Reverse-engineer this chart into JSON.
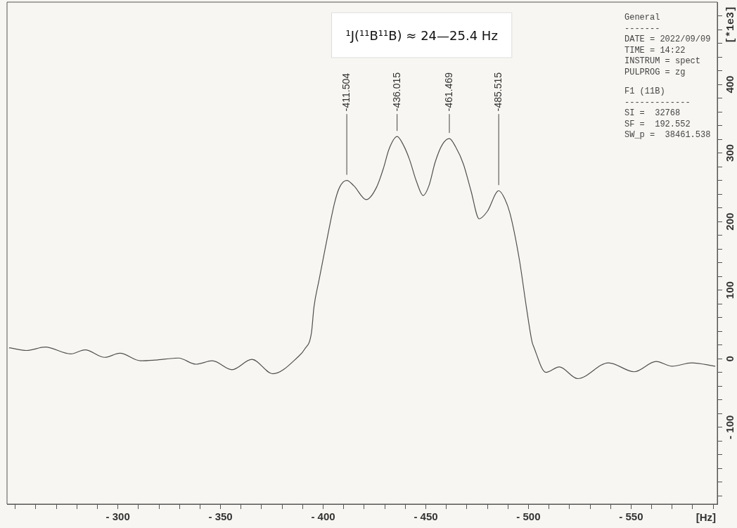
{
  "chart_data": {
    "type": "line",
    "title": "¹J(¹¹B¹¹B) ≈ 24—25.4 Hz",
    "xlabel": "[Hz]",
    "ylabel": "[*1e3]",
    "x": [
      -247,
      -255.5,
      -264.6,
      -277,
      -284,
      -293.6,
      -301,
      -311,
      -318,
      -329.5,
      -338,
      -346,
      -355.6,
      -365.3,
      -375.5,
      -387.5,
      -391,
      -394.3,
      -395.5,
      -398,
      -401,
      -405.7,
      -408,
      -411.504,
      -415,
      -421,
      -426,
      -429.6,
      -432,
      -436.015,
      -439,
      -442,
      -445.5,
      -448.7,
      -451.5,
      -454.6,
      -458,
      -461.469,
      -464.5,
      -468.3,
      -472,
      -476,
      -480,
      -485.515,
      -488.5,
      -491,
      -495.6,
      -499,
      -501.8,
      -502.5,
      -508.5,
      -515,
      -524,
      -539,
      -551.5,
      -562.2,
      -570,
      -579.5,
      -591
    ],
    "values": [
      16,
      12,
      17,
      7,
      13,
      2,
      8,
      -3,
      -2,
      1,
      -8,
      -3,
      -16,
      -1,
      -22,
      2,
      14,
      38,
      75,
      115,
      161,
      229,
      250,
      260,
      252,
      232,
      250,
      280,
      305,
      324,
      312,
      291,
      258,
      238,
      252,
      287,
      312,
      321,
      309,
      284,
      245,
      204,
      215,
      245,
      233,
      212,
      144,
      75,
      24,
      18,
      -20,
      -12,
      -29,
      -6,
      -19,
      -4,
      -11,
      -6,
      -11
    ],
    "color": "#505050",
    "marker": "none",
    "line_style": "solid",
    "legend": false,
    "grid": false,
    "xlim": [
      -246,
      -592
    ],
    "xticks": [
      {
        "value": -250,
        "label": null
      },
      {
        "value": -260,
        "label": null
      },
      {
        "value": -270,
        "label": null
      },
      {
        "value": -280,
        "label": null
      },
      {
        "value": -290,
        "label": null
      },
      {
        "value": -300,
        "label": "- 300"
      },
      {
        "value": -310,
        "label": null
      },
      {
        "value": -320,
        "label": null
      },
      {
        "value": -330,
        "label": null
      },
      {
        "value": -340,
        "label": null
      },
      {
        "value": -350,
        "label": "- 350"
      },
      {
        "value": -360,
        "label": null
      },
      {
        "value": -370,
        "label": null
      },
      {
        "value": -380,
        "label": null
      },
      {
        "value": -390,
        "label": null
      },
      {
        "value": -400,
        "label": "- 400"
      },
      {
        "value": -410,
        "label": null
      },
      {
        "value": -420,
        "label": null
      },
      {
        "value": -430,
        "label": null
      },
      {
        "value": -440,
        "label": null
      },
      {
        "value": -450,
        "label": "- 450"
      },
      {
        "value": -460,
        "label": null
      },
      {
        "value": -470,
        "label": null
      },
      {
        "value": -480,
        "label": null
      },
      {
        "value": -490,
        "label": null
      },
      {
        "value": -500,
        "label": "- 500"
      },
      {
        "value": -510,
        "label": null
      },
      {
        "value": -520,
        "label": null
      },
      {
        "value": -530,
        "label": null
      },
      {
        "value": -540,
        "label": null
      },
      {
        "value": -550,
        "label": "- 550"
      },
      {
        "value": -560,
        "label": null
      },
      {
        "value": -570,
        "label": null
      },
      {
        "value": -580,
        "label": null
      },
      {
        "value": -590,
        "label": null
      }
    ],
    "ylim": [
      -212,
      520
    ],
    "yticks": [
      {
        "value": -200,
        "label": null
      },
      {
        "value": -180,
        "label": null
      },
      {
        "value": -160,
        "label": null
      },
      {
        "value": -140,
        "label": null
      },
      {
        "value": -120,
        "label": null
      },
      {
        "value": -100,
        "label": "- 100"
      },
      {
        "value": -80,
        "label": null
      },
      {
        "value": -60,
        "label": null
      },
      {
        "value": -40,
        "label": null
      },
      {
        "value": -20,
        "label": null
      },
      0,
      {
        "value": 20,
        "label": null
      },
      {
        "value": 40,
        "label": null
      },
      {
        "value": 60,
        "label": null
      },
      {
        "value": 80,
        "label": null
      },
      100,
      {
        "value": 120,
        "label": null
      },
      {
        "value": 140,
        "label": null
      },
      {
        "value": 160,
        "label": null
      },
      {
        "value": 180,
        "label": null
      },
      200,
      {
        "value": 220,
        "label": null
      },
      {
        "value": 240,
        "label": null
      },
      {
        "value": 260,
        "label": null
      },
      {
        "value": 280,
        "label": null
      },
      300,
      {
        "value": 320,
        "label": null
      },
      {
        "value": 340,
        "label": null
      },
      {
        "value": 360,
        "label": null
      },
      {
        "value": 380,
        "label": null
      },
      400,
      {
        "value": 420,
        "label": null
      },
      {
        "value": 440,
        "label": null
      },
      {
        "value": 460,
        "label": null
      },
      {
        "value": 480,
        "label": null
      },
      {
        "value": 500,
        "label": null
      }
    ],
    "annotations": [
      {
        "text": "-411.504",
        "x": -411.504,
        "y": 260
      },
      {
        "text": "-436.015",
        "x": -436.015,
        "y": 324
      },
      {
        "text": "-461.469",
        "x": -461.469,
        "y": 321
      },
      {
        "text": "-485.515",
        "x": -485.515,
        "y": 245
      },
      "General",
      "-------",
      "DATE = 2022/09/09",
      "TIME = 14:22",
      "INSTRUM = spect",
      "PULPROG = zg",
      "F1 (11B)",
      "-------------",
      "SI =  32768",
      "SF =  192.552",
      "SW_p =  38461.538"
    ]
  }
}
